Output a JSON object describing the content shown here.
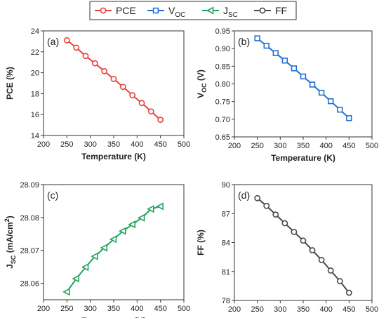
{
  "legend": {
    "entries": [
      {
        "label": "PCE",
        "sub": "",
        "color": "#e8413c",
        "marker": "circle"
      },
      {
        "label": "V",
        "sub": "OC",
        "color": "#1e6fd6",
        "marker": "square"
      },
      {
        "label": "J",
        "sub": "SC",
        "color": "#1fa35a",
        "marker": "triangle"
      },
      {
        "label": "FF",
        "sub": "",
        "color": "#4a4a4a",
        "marker": "circle"
      }
    ]
  },
  "chart_data": [
    {
      "type": "line",
      "panel_label": "(a)",
      "xlabel": "Temperature (K)",
      "ylabel": "PCE (%)",
      "ylabel_sub": "",
      "ylabel_tail": "",
      "color": "#e8413c",
      "marker": "circle",
      "xlim": [
        200,
        500
      ],
      "ylim": [
        14,
        24
      ],
      "xticks": [
        "200",
        "250",
        "300",
        "350",
        "400",
        "450",
        "500"
      ],
      "yticks": [
        "14",
        "16",
        "18",
        "20",
        "22",
        "24"
      ],
      "x": [
        250,
        270,
        290,
        310,
        330,
        350,
        370,
        390,
        410,
        430,
        450
      ],
      "y": [
        23.1,
        22.4,
        21.6,
        20.9,
        20.15,
        19.4,
        18.65,
        17.85,
        17.1,
        16.3,
        15.5
      ]
    },
    {
      "type": "line",
      "panel_label": "(b)",
      "xlabel": "Temperature (K)",
      "ylabel": "V",
      "ylabel_sub": "OC",
      "ylabel_tail": " (V)",
      "color": "#1e6fd6",
      "marker": "square",
      "xlim": [
        200,
        500
      ],
      "ylim": [
        0.65,
        0.95
      ],
      "xticks": [
        "200",
        "250",
        "300",
        "350",
        "400",
        "450",
        "500"
      ],
      "yticks": [
        "0.65",
        "0.70",
        "0.75",
        "0.80",
        "0.85",
        "0.90",
        "0.95"
      ],
      "x": [
        250,
        270,
        290,
        310,
        330,
        350,
        370,
        390,
        410,
        430,
        450
      ],
      "y": [
        0.929,
        0.908,
        0.887,
        0.866,
        0.844,
        0.821,
        0.798,
        0.775,
        0.751,
        0.727,
        0.703
      ]
    },
    {
      "type": "line",
      "panel_label": "(c)",
      "xlabel": "Temperature (K)",
      "ylabel": "J",
      "ylabel_sub": "SC",
      "ylabel_tail": " (mA/cm",
      "ylabel_sup": "2",
      "ylabel_end": ")",
      "color": "#1fa35a",
      "marker": "triangle",
      "xlim": [
        200,
        500
      ],
      "ylim": [
        28.055,
        28.09
      ],
      "xticks": [
        "200",
        "250",
        "300",
        "350",
        "400",
        "450",
        "500"
      ],
      "yticks": [
        "28.06",
        "28.07",
        "28.08",
        "28.09"
      ],
      "x": [
        250,
        270,
        290,
        310,
        330,
        350,
        370,
        390,
        410,
        430,
        450
      ],
      "y": [
        28.0574,
        28.0614,
        28.0649,
        28.0682,
        28.0708,
        28.0734,
        28.0759,
        28.0779,
        28.0799,
        28.0826,
        28.0834
      ]
    },
    {
      "type": "line",
      "panel_label": "(d)",
      "xlabel": "Temperature (K)",
      "ylabel": "FF (%)",
      "ylabel_sub": "",
      "ylabel_tail": "",
      "color": "#4a4a4a",
      "marker": "circle",
      "xlim": [
        200,
        500
      ],
      "ylim": [
        78,
        90
      ],
      "xticks": [
        "200",
        "250",
        "300",
        "350",
        "400",
        "450",
        "500"
      ],
      "yticks": [
        "78",
        "81",
        "84",
        "87",
        "90"
      ],
      "x": [
        250,
        270,
        290,
        310,
        330,
        350,
        370,
        390,
        410,
        430,
        450
      ],
      "y": [
        88.6,
        87.8,
        86.9,
        86.0,
        85.1,
        84.2,
        83.2,
        82.2,
        81.1,
        80.0,
        78.8
      ]
    }
  ]
}
